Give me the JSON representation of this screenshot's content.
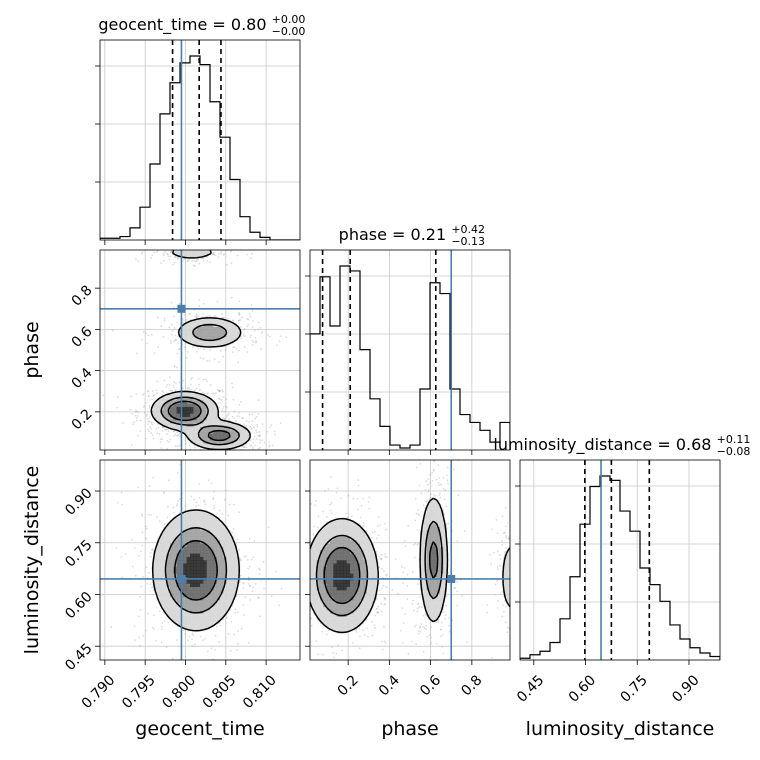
{
  "colors": {
    "truth": "#4c7fae",
    "hist": "#000000",
    "grid": "#c8c8c8",
    "scatter": "#9a9a9a"
  },
  "chart_data": {
    "type": "corner",
    "parameters": [
      "geocent_time",
      "phase",
      "luminosity_distance"
    ],
    "truth": [
      0.7995,
      0.7,
      0.645
    ],
    "ranges": [
      [
        0.7894,
        0.8142
      ],
      [
        0.015,
        0.985
      ],
      [
        0.41,
        0.99
      ]
    ],
    "ticks": [
      [
        0.79,
        0.795,
        0.8,
        0.805,
        0.81
      ],
      [
        0.2,
        0.4,
        0.6,
        0.8
      ],
      [
        0.45,
        0.6,
        0.75,
        0.9
      ]
    ],
    "tick_labels": [
      [
        "0.790",
        "0.795",
        "0.800",
        "0.805",
        "0.810"
      ],
      [
        "0.2",
        "0.4",
        "0.6",
        "0.8"
      ],
      [
        "0.45",
        "0.60",
        "0.75",
        "0.90"
      ]
    ],
    "y_tick_labels": {
      "phase": [
        "0.2",
        "0.4",
        "0.6",
        "0.8"
      ],
      "luminosity_distance": [
        "0.45",
        "0.60",
        "0.75",
        "0.90"
      ]
    },
    "titles": [
      {
        "name": "geocent_time",
        "median": "0.80",
        "plus": "+0.00",
        "minus": "−0.00"
      },
      {
        "name": "phase",
        "median": "0.21",
        "plus": "+0.42",
        "minus": "−0.13"
      },
      {
        "name": "luminosity_distance",
        "median": "0.68",
        "plus": "+0.11",
        "minus": "−0.08"
      }
    ],
    "quantiles": [
      [
        0.7984,
        0.8017,
        0.8044
      ],
      [
        0.076,
        0.21,
        0.625
      ],
      [
        0.598,
        0.675,
        0.785
      ]
    ],
    "histograms": [
      {
        "edges": [
          0.7894,
          0.79064,
          0.79188,
          0.79312,
          0.79436,
          0.7956,
          0.79684,
          0.79808,
          0.79932,
          0.80056,
          0.8018,
          0.80304,
          0.80428,
          0.80552,
          0.80676,
          0.808,
          0.80924,
          0.81048,
          0.81172,
          0.81296,
          0.8142
        ],
        "counts": [
          2,
          2,
          4,
          14,
          38,
          88,
          146,
          182,
          205,
          213,
          203,
          160,
          119,
          70,
          27,
          9,
          3,
          0,
          0,
          0
        ]
      },
      {
        "edges": [
          0.015,
          0.0635,
          0.112,
          0.1605,
          0.209,
          0.2575,
          0.306,
          0.3545,
          0.403,
          0.4515,
          0.5,
          0.5485,
          0.597,
          0.6455,
          0.694,
          0.7425,
          0.791,
          0.8395,
          0.888,
          0.9365,
          0.985
        ],
        "counts": [
          118,
          176,
          126,
          187,
          182,
          102,
          52,
          24,
          5,
          2,
          5,
          62,
          170,
          159,
          62,
          36,
          28,
          20,
          8,
          28
        ]
      },
      {
        "edges": [
          0.41,
          0.439,
          0.468,
          0.497,
          0.526,
          0.555,
          0.584,
          0.613,
          0.642,
          0.671,
          0.7,
          0.729,
          0.758,
          0.787,
          0.816,
          0.845,
          0.874,
          0.903,
          0.932,
          0.961,
          0.99
        ],
        "counts": [
          2,
          6,
          10,
          20,
          47,
          95,
          155,
          198,
          210,
          205,
          170,
          147,
          105,
          86,
          67,
          40,
          24,
          14,
          8,
          4
        ]
      }
    ],
    "density_blobs": [
      {
        "pair": [
          0,
          1
        ],
        "blobs": [
          {
            "cx": 0.7999,
            "cy": 0.205,
            "sx": 0.002,
            "sy": 0.045,
            "w": 1.0
          },
          {
            "cx": 0.8042,
            "cy": 0.085,
            "sx": 0.002,
            "sy": 0.035,
            "w": 0.75
          },
          {
            "cx": 0.803,
            "cy": 0.585,
            "sx": 0.0022,
            "sy": 0.04,
            "w": 0.55
          },
          {
            "cx": 0.8008,
            "cy": 0.975,
            "sx": 0.0018,
            "sy": 0.02,
            "w": 0.3
          }
        ]
      },
      {
        "pair": [
          0,
          2
        ],
        "blobs": [
          {
            "cx": 0.8013,
            "cy": 0.67,
            "sx": 0.0026,
            "sy": 0.085,
            "w": 1.0
          }
        ]
      },
      {
        "pair": [
          1,
          2
        ],
        "blobs": [
          {
            "cx": 0.17,
            "cy": 0.655,
            "sx": 0.085,
            "sy": 0.08,
            "w": 1.0
          },
          {
            "cx": 0.615,
            "cy": 0.7,
            "sx": 0.035,
            "sy": 0.095,
            "w": 0.7
          },
          {
            "cx": 0.995,
            "cy": 0.65,
            "sx": 0.03,
            "sy": 0.06,
            "w": 0.35
          }
        ]
      }
    ],
    "grid": true
  }
}
